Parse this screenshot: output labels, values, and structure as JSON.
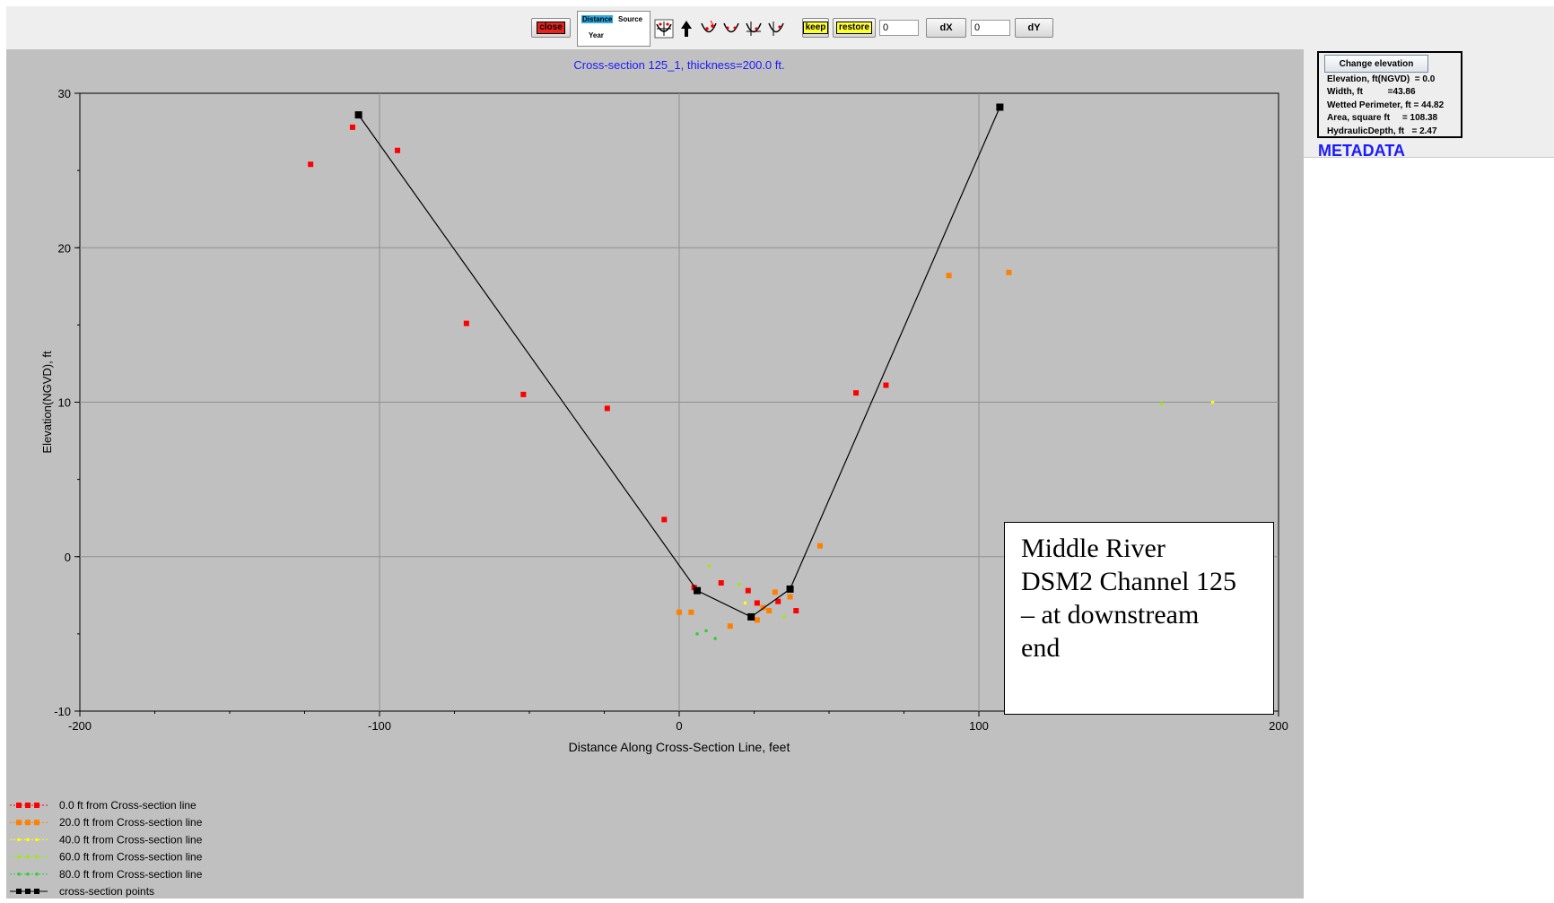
{
  "toolbar": {
    "close_label": "close",
    "toggle": {
      "distance": "Distance",
      "source": "Source",
      "year": "Year"
    },
    "keep_label": "keep",
    "restore_label": "restore",
    "dx_value": "0",
    "dx_label": "dX",
    "dy_value": "0",
    "dy_label": "dY",
    "icons": [
      "move-points-icon",
      "arrow-up-icon",
      "insert-point-icon",
      "channel-icon",
      "delete-point-icon",
      "channel-edit-icon"
    ]
  },
  "elevation_panel": {
    "button_label": "Change elevation",
    "lines": [
      "Elevation, ft(NGVD)  = 0.0",
      "Width, ft          =43.86",
      "Wetted Perimeter, ft = 44.82",
      "Area, square ft     = 108.38",
      "HydraulicDepth, ft   = 2.47"
    ]
  },
  "metadata_label": "METADATA",
  "annotation": [
    "Middle River",
    "DSM2 Channel 125",
    "– at downstream",
    "end"
  ],
  "chart_data": {
    "type": "scatter",
    "title": "Cross-section 125_1, thickness=200.0 ft.",
    "xlabel": "Distance Along Cross-Section Line, feet",
    "ylabel": "Elevation(NGVD), ft",
    "xlim": [
      -200,
      200
    ],
    "ylim": [
      -10,
      30
    ],
    "xticks": [
      -200,
      -100,
      0,
      100,
      200
    ],
    "yticks": [
      -10,
      0,
      10,
      20,
      30
    ],
    "grid": true,
    "legend_position": "bottom-left",
    "series": [
      {
        "name": "0.0 ft from Cross-section line",
        "color": "#ff0000",
        "marker": "square",
        "points": [
          [
            -123,
            25.4
          ],
          [
            -109,
            27.8
          ],
          [
            -94,
            26.3
          ],
          [
            -71,
            15.1
          ],
          [
            -52,
            10.5
          ],
          [
            -24,
            9.6
          ],
          [
            -5,
            2.4
          ],
          [
            5,
            -2.0
          ],
          [
            14,
            -1.7
          ],
          [
            23,
            -2.2
          ],
          [
            26,
            -3.0
          ],
          [
            33,
            -2.9
          ],
          [
            39,
            -3.5
          ],
          [
            59,
            10.6
          ],
          [
            69,
            11.1
          ]
        ]
      },
      {
        "name": "20.0 ft from Cross-section line",
        "color": "#ff8000",
        "marker": "square",
        "points": [
          [
            0,
            -3.6
          ],
          [
            4,
            -3.6
          ],
          [
            17,
            -4.5
          ],
          [
            26,
            -4.1
          ],
          [
            28,
            -3.3
          ],
          [
            30,
            -3.5
          ],
          [
            32,
            -2.3
          ],
          [
            37,
            -2.6
          ],
          [
            47,
            0.7
          ],
          [
            90,
            18.2
          ],
          [
            110,
            18.4
          ]
        ]
      },
      {
        "name": "40.0 ft from Cross-section line",
        "color": "#ffff00",
        "marker": "dot",
        "points": [
          [
            22,
            -3.0
          ],
          [
            178,
            10.0
          ]
        ]
      },
      {
        "name": "60.0 ft from Cross-section line",
        "color": "#99ee00",
        "marker": "dot",
        "points": [
          [
            10,
            -0.6
          ],
          [
            20,
            -1.8
          ],
          [
            35,
            -3.9
          ],
          [
            161,
            9.9
          ]
        ]
      },
      {
        "name": "80.0 ft from Cross-section line",
        "color": "#33cc33",
        "marker": "dot",
        "points": [
          [
            6,
            -5.0
          ],
          [
            9,
            -4.8
          ],
          [
            12,
            -5.3
          ]
        ]
      },
      {
        "name": "cross-section points",
        "color": "#000000",
        "marker": "square",
        "line": true,
        "points": [
          [
            -107,
            28.6
          ],
          [
            6,
            -2.2
          ],
          [
            24,
            -3.9
          ],
          [
            37,
            -2.1
          ],
          [
            107,
            29.1
          ]
        ]
      }
    ]
  }
}
